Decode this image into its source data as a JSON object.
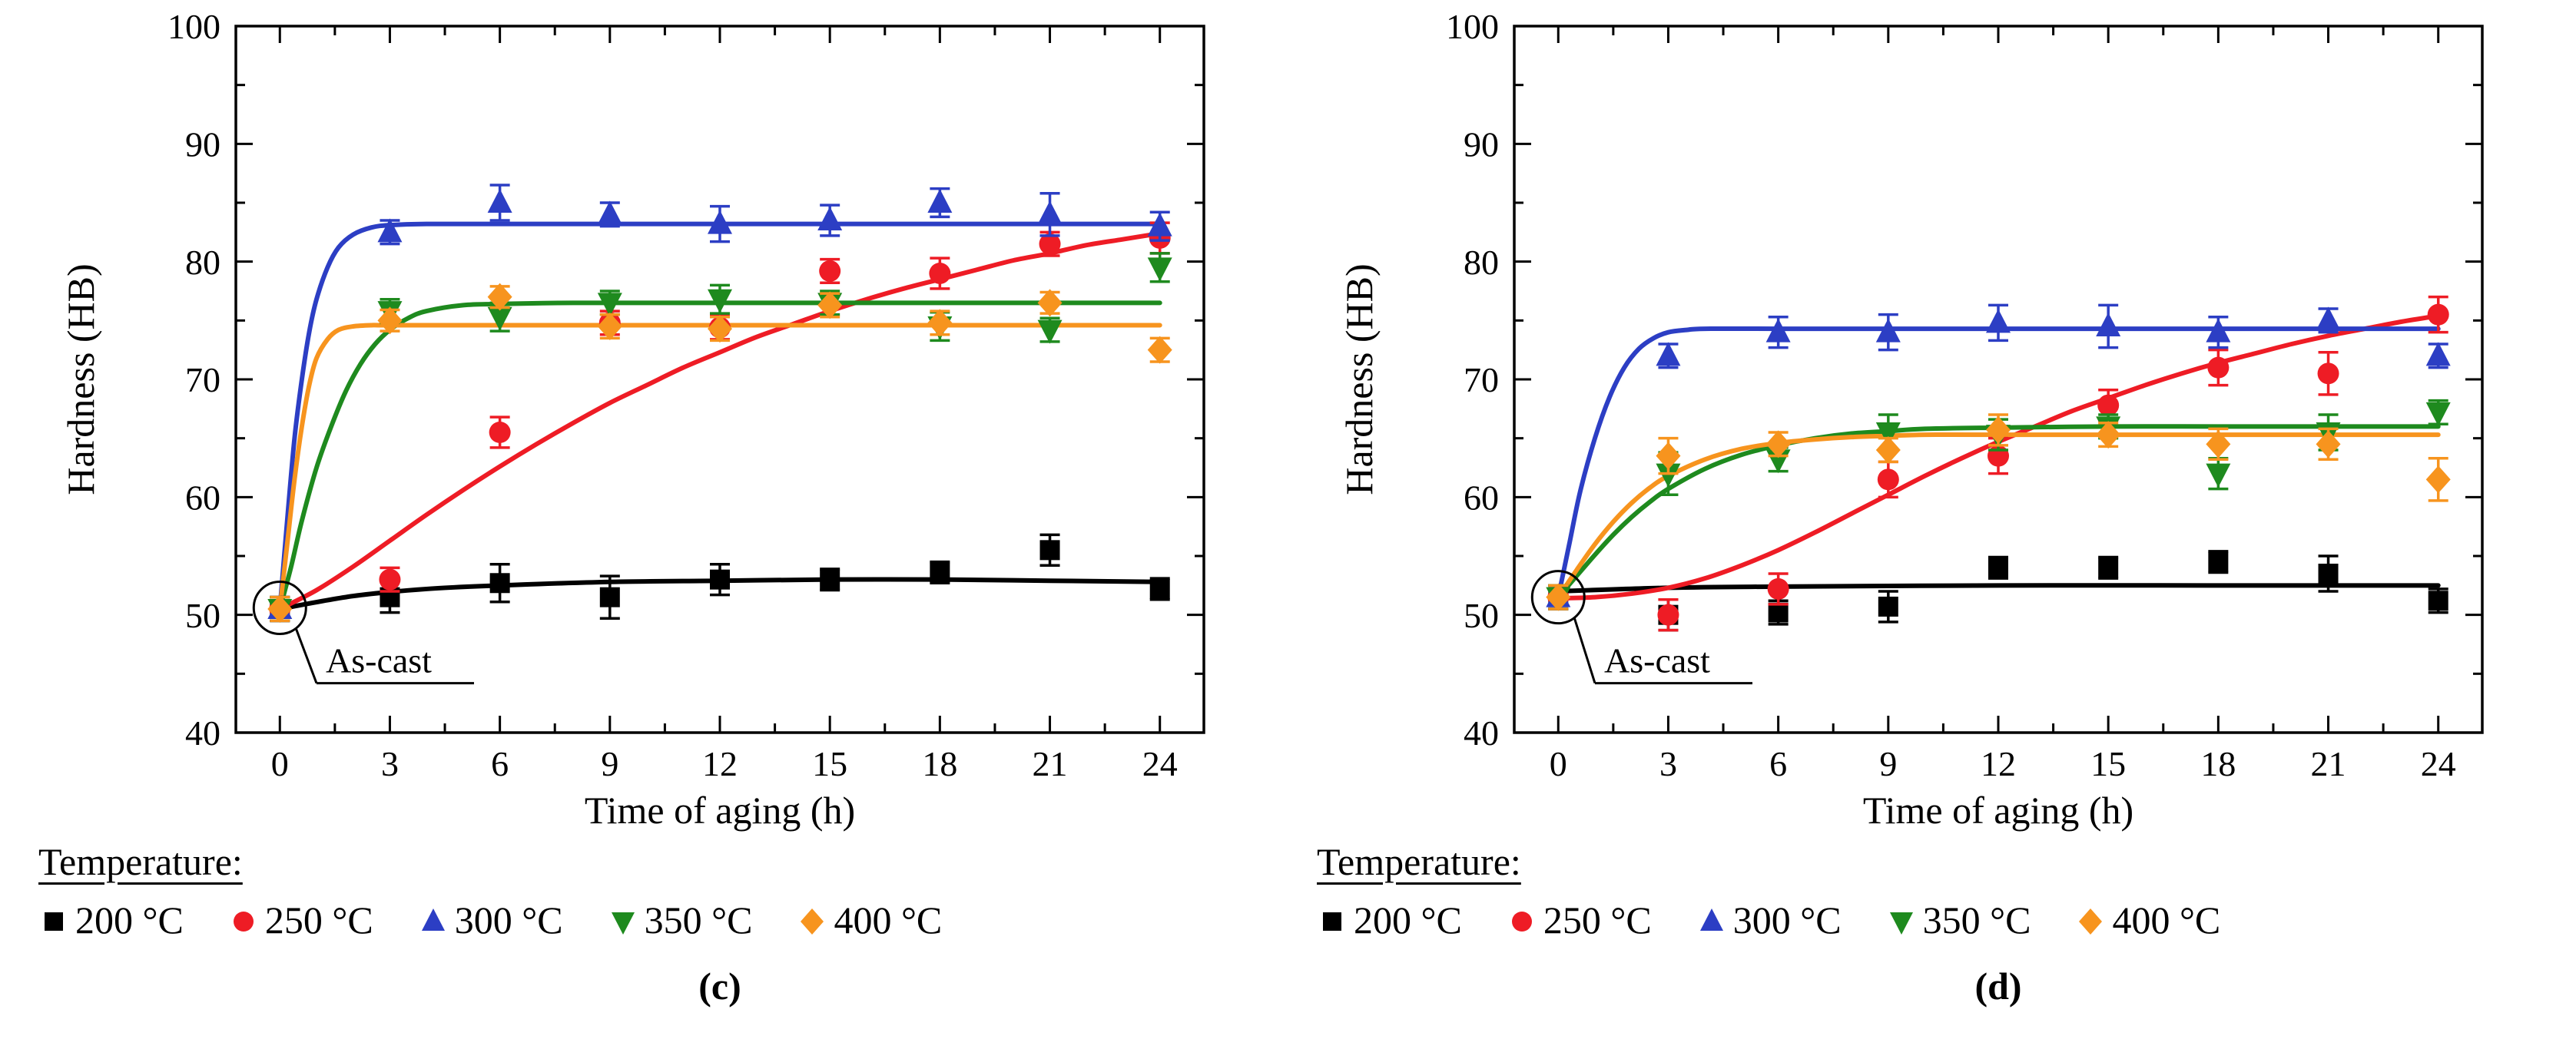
{
  "chart_data": [
    {
      "id": "c",
      "type": "scatter",
      "title": "",
      "caption": "(c)",
      "xlabel": "Time of aging (h)",
      "ylabel": "Hardness (HB)",
      "legend_title": "Temperature:",
      "xlim": [
        -1.2,
        25.2
      ],
      "ylim": [
        40,
        100
      ],
      "x_ticks": [
        0,
        3,
        6,
        9,
        12,
        15,
        18,
        21,
        24
      ],
      "x_minor_ticks": [
        1.5,
        4.5,
        7.5,
        10.5,
        13.5,
        16.5,
        19.5,
        22.5
      ],
      "y_ticks": [
        40,
        50,
        60,
        70,
        80,
        90,
        100
      ],
      "y_minor_ticks": [
        45,
        55,
        65,
        75,
        85,
        95
      ],
      "annotation": {
        "label": "As-cast",
        "x": 0,
        "y": 50.6
      },
      "x": [
        0,
        3,
        6,
        9,
        12,
        15,
        18,
        21,
        24
      ],
      "series": [
        {
          "key": "200c",
          "name": "200 °C",
          "marker": "square",
          "color": "#000000",
          "y": [
            50.5,
            51.5,
            52.7,
            51.5,
            53.0,
            53.0,
            53.6,
            55.5,
            52.2
          ],
          "yerr": [
            1.0,
            1.3,
            1.6,
            1.8,
            1.3,
            0.9,
            0.9,
            1.3,
            0.9
          ],
          "fit": [
            [
              0,
              50.5
            ],
            [
              2,
              51.6
            ],
            [
              4,
              52.2
            ],
            [
              6,
              52.5
            ],
            [
              9,
              52.8
            ],
            [
              12,
              52.9
            ],
            [
              15,
              53.0
            ],
            [
              18,
              53.0
            ],
            [
              21,
              52.9
            ],
            [
              24,
              52.8
            ]
          ]
        },
        {
          "key": "250c",
          "name": "250 °C",
          "marker": "circle",
          "color": "#ee1c25",
          "y": [
            50.5,
            53.0,
            65.5,
            74.8,
            74.4,
            79.2,
            79.0,
            81.5,
            82.0
          ],
          "yerr": [
            1.0,
            1.0,
            1.3,
            1.0,
            1.0,
            1.0,
            1.3,
            1.0,
            1.3
          ],
          "fit": [
            [
              0,
              50.5
            ],
            [
              1,
              52.1
            ],
            [
              2,
              54.1
            ],
            [
              3,
              56.3
            ],
            [
              4,
              58.5
            ],
            [
              5,
              60.6
            ],
            [
              6,
              62.6
            ],
            [
              7,
              64.5
            ],
            [
              8,
              66.3
            ],
            [
              9,
              68.0
            ],
            [
              10,
              69.5
            ],
            [
              11,
              71.0
            ],
            [
              12,
              72.3
            ],
            [
              13,
              73.6
            ],
            [
              14,
              74.7
            ],
            [
              15,
              75.8
            ],
            [
              16,
              76.8
            ],
            [
              17,
              77.7
            ],
            [
              18,
              78.5
            ],
            [
              19,
              79.3
            ],
            [
              20,
              80.1
            ],
            [
              21,
              80.7
            ],
            [
              22,
              81.4
            ],
            [
              23,
              81.9
            ],
            [
              24,
              82.4
            ]
          ]
        },
        {
          "key": "300c",
          "name": "300 °C",
          "marker": "triangle-up",
          "color": "#2c3ec4",
          "y": [
            50.5,
            82.5,
            85.0,
            84.0,
            83.2,
            83.5,
            85.0,
            84.0,
            83.0
          ],
          "yerr": [
            1.0,
            1.0,
            1.5,
            1.0,
            1.5,
            1.3,
            1.2,
            1.8,
            1.2
          ],
          "fit": [
            [
              0,
              50.5
            ],
            [
              0.2,
              58.0
            ],
            [
              0.4,
              65.0
            ],
            [
              0.6,
              70.0
            ],
            [
              0.8,
              74.0
            ],
            [
              1,
              76.8
            ],
            [
              1.3,
              79.5
            ],
            [
              1.6,
              81.2
            ],
            [
              2,
              82.3
            ],
            [
              2.5,
              82.9
            ],
            [
              3,
              83.1
            ],
            [
              4,
              83.2
            ],
            [
              6,
              83.2
            ],
            [
              9,
              83.2
            ],
            [
              12,
              83.2
            ],
            [
              15,
              83.2
            ],
            [
              18,
              83.2
            ],
            [
              21,
              83.2
            ],
            [
              24,
              83.2
            ]
          ]
        },
        {
          "key": "350c",
          "name": "350 °C",
          "marker": "triangle-down",
          "color": "#1e8a1e",
          "y": [
            50.5,
            75.8,
            75.3,
            76.5,
            76.8,
            76.5,
            74.5,
            74.2,
            79.5
          ],
          "yerr": [
            1.0,
            1.0,
            1.2,
            1.0,
            1.2,
            1.0,
            1.2,
            1.0,
            1.2
          ],
          "fit": [
            [
              0,
              50.5
            ],
            [
              0.3,
              54.0
            ],
            [
              0.6,
              58.0
            ],
            [
              1,
              62.5
            ],
            [
              1.4,
              66.0
            ],
            [
              1.8,
              69.0
            ],
            [
              2.2,
              71.3
            ],
            [
              2.6,
              73.0
            ],
            [
              3,
              74.2
            ],
            [
              3.5,
              75.2
            ],
            [
              4,
              75.8
            ],
            [
              5,
              76.3
            ],
            [
              6,
              76.4
            ],
            [
              8,
              76.5
            ],
            [
              12,
              76.5
            ],
            [
              18,
              76.5
            ],
            [
              24,
              76.5
            ]
          ]
        },
        {
          "key": "400c",
          "name": "400 °C",
          "marker": "diamond",
          "color": "#f7941e",
          "y": [
            50.5,
            75.0,
            77.0,
            74.5,
            74.3,
            76.3,
            74.8,
            76.5,
            72.5
          ],
          "yerr": [
            1.0,
            0.9,
            0.9,
            1.0,
            1.0,
            1.0,
            1.0,
            0.9,
            1.0
          ],
          "fit": [
            [
              0,
              50.5
            ],
            [
              0.2,
              56.0
            ],
            [
              0.4,
              61.5
            ],
            [
              0.6,
              66.0
            ],
            [
              0.8,
              69.5
            ],
            [
              1,
              71.8
            ],
            [
              1.3,
              73.4
            ],
            [
              1.6,
              74.2
            ],
            [
              2,
              74.5
            ],
            [
              2.5,
              74.6
            ],
            [
              3,
              74.6
            ],
            [
              6,
              74.6
            ],
            [
              12,
              74.6
            ],
            [
              18,
              74.6
            ],
            [
              24,
              74.6
            ]
          ]
        }
      ]
    },
    {
      "id": "d",
      "type": "scatter",
      "title": "",
      "caption": "(d)",
      "xlabel": "Time of aging (h)",
      "ylabel": "Hardness (HB)",
      "legend_title": "Temperature:",
      "xlim": [
        -1.2,
        25.2
      ],
      "ylim": [
        40,
        100
      ],
      "x_ticks": [
        0,
        3,
        6,
        9,
        12,
        15,
        18,
        21,
        24
      ],
      "x_minor_ticks": [
        1.5,
        4.5,
        7.5,
        10.5,
        13.5,
        16.5,
        19.5,
        22.5
      ],
      "y_ticks": [
        40,
        50,
        60,
        70,
        80,
        90,
        100
      ],
      "y_minor_ticks": [
        45,
        55,
        65,
        75,
        85,
        95
      ],
      "annotation": {
        "label": "As-cast",
        "x": 0,
        "y": 51.5
      },
      "x": [
        0,
        3,
        6,
        9,
        12,
        15,
        18,
        21,
        24
      ],
      "series": [
        {
          "key": "200d",
          "name": "200 °C",
          "marker": "square",
          "color": "#000000",
          "y": [
            51.5,
            50.0,
            50.2,
            50.7,
            54.0,
            54.0,
            54.5,
            53.5,
            51.2
          ],
          "yerr": [
            1.0,
            1.3,
            1.0,
            1.3,
            0.9,
            0.9,
            0.9,
            1.5,
            1.0
          ],
          "fit": [
            [
              0,
              52.0
            ],
            [
              3,
              52.3
            ],
            [
              6,
              52.4
            ],
            [
              12,
              52.5
            ],
            [
              18,
              52.5
            ],
            [
              24,
              52.5
            ]
          ]
        },
        {
          "key": "250d",
          "name": "250 °C",
          "marker": "circle",
          "color": "#ee1c25",
          "y": [
            51.5,
            50.0,
            52.2,
            61.5,
            63.5,
            67.8,
            71.0,
            70.5,
            75.5
          ],
          "yerr": [
            1.0,
            1.3,
            1.3,
            1.5,
            1.5,
            1.3,
            1.5,
            1.8,
            1.5
          ],
          "fit": [
            [
              0,
              51.4
            ],
            [
              1,
              51.5
            ],
            [
              2,
              51.8
            ],
            [
              3,
              52.3
            ],
            [
              4,
              53.1
            ],
            [
              5,
              54.2
            ],
            [
              6,
              55.5
            ],
            [
              7,
              57.0
            ],
            [
              8,
              58.6
            ],
            [
              9,
              60.2
            ],
            [
              10,
              61.8
            ],
            [
              11,
              63.3
            ],
            [
              12,
              64.7
            ],
            [
              13,
              66.0
            ],
            [
              14,
              67.3
            ],
            [
              15,
              68.4
            ],
            [
              16,
              69.5
            ],
            [
              17,
              70.5
            ],
            [
              18,
              71.4
            ],
            [
              19,
              72.2
            ],
            [
              20,
              73.0
            ],
            [
              21,
              73.7
            ],
            [
              22,
              74.3
            ],
            [
              23,
              74.9
            ],
            [
              24,
              75.4
            ]
          ]
        },
        {
          "key": "300d",
          "name": "300 °C",
          "marker": "triangle-up",
          "color": "#2c3ec4",
          "y": [
            51.5,
            72.0,
            74.0,
            74.0,
            74.8,
            74.5,
            74.0,
            75.0,
            72.0
          ],
          "yerr": [
            1.0,
            1.0,
            1.3,
            1.5,
            1.5,
            1.8,
            1.3,
            1.0,
            1.0
          ],
          "fit": [
            [
              0,
              51.5
            ],
            [
              0.3,
              56.0
            ],
            [
              0.6,
              60.5
            ],
            [
              1,
              65.0
            ],
            [
              1.4,
              68.5
            ],
            [
              1.8,
              71.0
            ],
            [
              2.2,
              72.6
            ],
            [
              2.6,
              73.5
            ],
            [
              3,
              74.0
            ],
            [
              3.5,
              74.2
            ],
            [
              4,
              74.3
            ],
            [
              6,
              74.3
            ],
            [
              12,
              74.3
            ],
            [
              18,
              74.3
            ],
            [
              24,
              74.3
            ]
          ]
        },
        {
          "key": "350d",
          "name": "350 °C",
          "marker": "triangle-down",
          "color": "#1e8a1e",
          "y": [
            51.5,
            62.0,
            63.2,
            65.5,
            65.3,
            66.0,
            62.0,
            65.5,
            67.2
          ],
          "yerr": [
            1.0,
            1.8,
            1.0,
            1.5,
            1.3,
            1.0,
            1.3,
            1.5,
            1.0
          ],
          "fit": [
            [
              0,
              51.5
            ],
            [
              0.5,
              53.3
            ],
            [
              1,
              55.1
            ],
            [
              1.5,
              56.8
            ],
            [
              2,
              58.3
            ],
            [
              2.5,
              59.6
            ],
            [
              3,
              60.7
            ],
            [
              4,
              62.4
            ],
            [
              5,
              63.6
            ],
            [
              6,
              64.4
            ],
            [
              7,
              65.0
            ],
            [
              8,
              65.4
            ],
            [
              9,
              65.6
            ],
            [
              10,
              65.8
            ],
            [
              12,
              65.9
            ],
            [
              15,
              66.0
            ],
            [
              18,
              66.0
            ],
            [
              21,
              66.0
            ],
            [
              24,
              66.0
            ]
          ]
        },
        {
          "key": "400d",
          "name": "400 °C",
          "marker": "diamond",
          "color": "#f7941e",
          "y": [
            51.5,
            63.5,
            64.5,
            64.0,
            65.7,
            65.3,
            64.5,
            64.5,
            61.5
          ],
          "yerr": [
            1.0,
            1.5,
            1.0,
            1.0,
            1.3,
            1.0,
            1.3,
            1.3,
            1.8
          ],
          "fit": [
            [
              0,
              51.5
            ],
            [
              0.5,
              53.8
            ],
            [
              1,
              56.0
            ],
            [
              1.5,
              57.9
            ],
            [
              2,
              59.5
            ],
            [
              2.5,
              60.8
            ],
            [
              3,
              61.8
            ],
            [
              4,
              63.2
            ],
            [
              5,
              64.1
            ],
            [
              6,
              64.6
            ],
            [
              7,
              64.9
            ],
            [
              8,
              65.1
            ],
            [
              9,
              65.2
            ],
            [
              10,
              65.3
            ],
            [
              12,
              65.3
            ],
            [
              18,
              65.3
            ],
            [
              24,
              65.3
            ]
          ]
        }
      ]
    }
  ]
}
